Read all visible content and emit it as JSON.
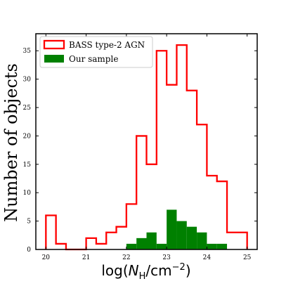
{
  "chart_data": {
    "type": "bar",
    "title": "",
    "xlabel": "log(N_H/cm^-2)",
    "ylabel": "Number of objects",
    "xlim": [
      19.75,
      25.25
    ],
    "ylim": [
      0,
      38
    ],
    "x_ticks": [
      20,
      21,
      22,
      23,
      24,
      25
    ],
    "y_ticks": [
      0,
      5,
      10,
      15,
      20,
      25,
      30,
      35
    ],
    "bin_width": 0.25,
    "bin_edges": [
      20.0,
      20.25,
      20.5,
      20.75,
      21.0,
      21.25,
      21.5,
      21.75,
      22.0,
      22.25,
      22.5,
      22.75,
      23.0,
      23.25,
      23.5,
      23.75,
      24.0,
      24.25,
      24.5,
      24.75,
      25.0
    ],
    "legend_position": "top-left",
    "series": [
      {
        "name": "BASS type-2 AGN",
        "style": "step",
        "color": "#ff0000",
        "values": [
          6,
          1,
          0,
          0,
          2,
          1,
          3,
          4,
          8,
          20,
          15,
          35,
          29,
          36,
          28,
          22,
          13,
          12,
          3,
          3
        ]
      },
      {
        "name": "Our sample",
        "style": "filled",
        "color": "#008000",
        "values": [
          0,
          0,
          0,
          0,
          0,
          0,
          0,
          0,
          1,
          2,
          3,
          1,
          7,
          5,
          4,
          3,
          1,
          1,
          0,
          0
        ]
      }
    ]
  }
}
